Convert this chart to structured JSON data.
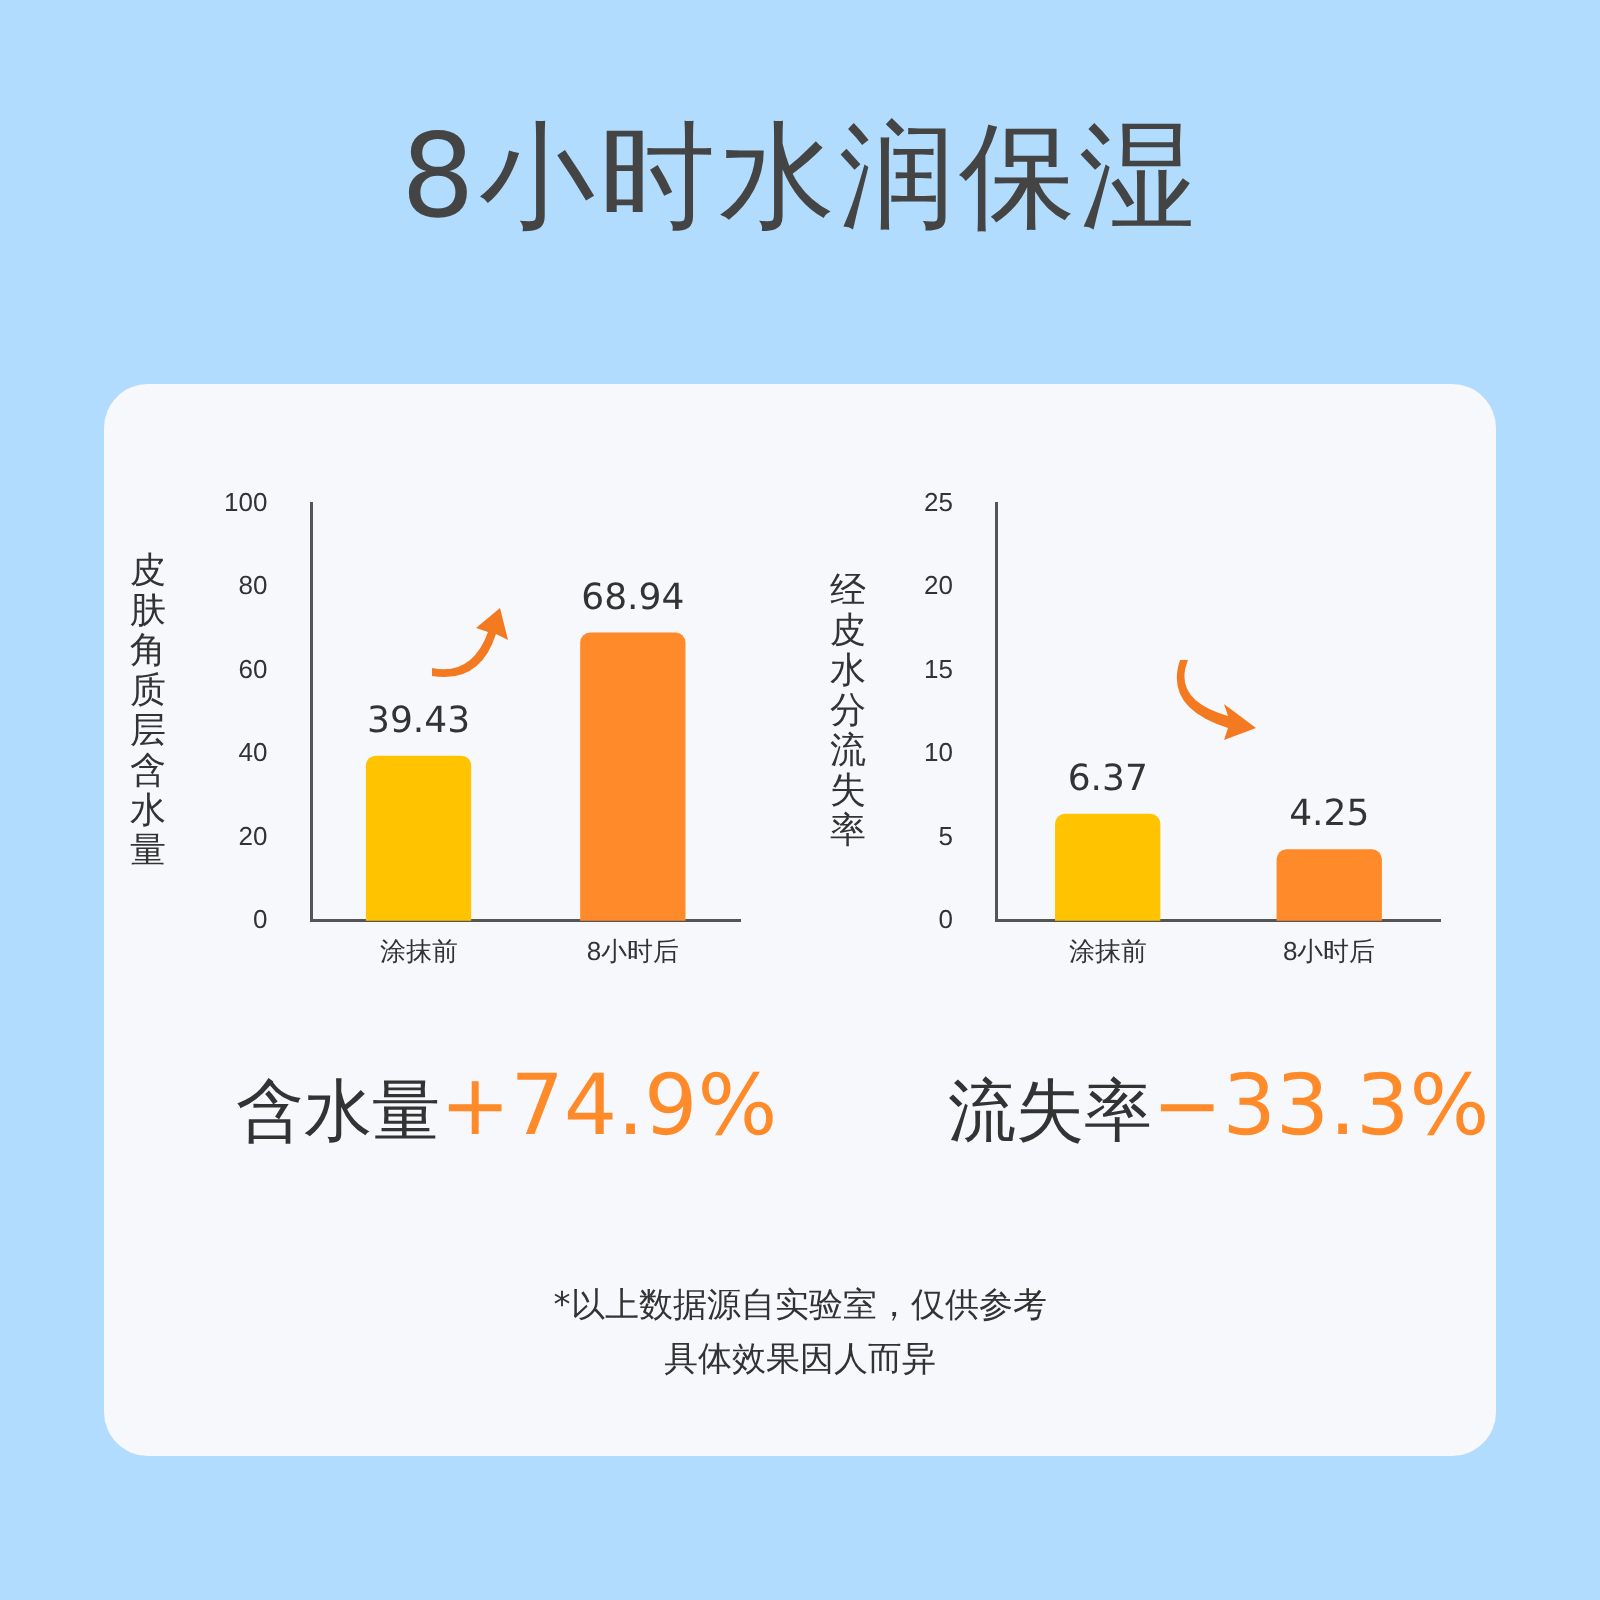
{
  "chart_data": [
    {
      "type": "bar",
      "title": "8小时水润保湿",
      "ylabel": "皮肤角质层含水量",
      "categories": [
        "涂抹前",
        "8小时后"
      ],
      "values": [
        39.43,
        68.94
      ],
      "colors": [
        "#ffc300",
        "#ff8a2a"
      ],
      "ylim": [
        0,
        100
      ],
      "yticks": [
        0,
        20,
        40,
        60,
        80,
        100
      ],
      "grid": false,
      "data_labels": true,
      "annotations": [
        "含水量",
        "+74.9%"
      ]
    },
    {
      "type": "bar",
      "ylabel": "经皮水分流失率",
      "categories": [
        "涂抹前",
        "8小时后"
      ],
      "values": [
        6.37,
        4.25
      ],
      "colors": [
        "#ffc300",
        "#ff8a2a"
      ],
      "ylim": [
        0,
        25
      ],
      "yticks": [
        0,
        5,
        10,
        15,
        20,
        25
      ],
      "grid": false,
      "data_labels": true,
      "annotations": [
        "流失率",
        "−33.3%",
        "*以上数据源自实验室，仅供参考",
        "具体效果因人而异"
      ]
    }
  ]
}
